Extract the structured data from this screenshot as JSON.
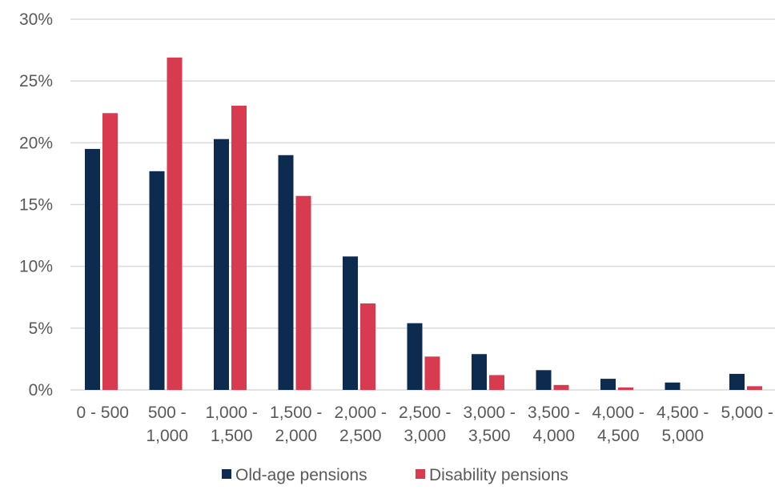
{
  "chart_data": {
    "type": "bar",
    "categories": [
      [
        "0 - 500",
        ""
      ],
      [
        "500 -",
        "1,000"
      ],
      [
        "1,000 -",
        "1,500"
      ],
      [
        "1,500 -",
        "2,000"
      ],
      [
        "2,000 -",
        "2,500"
      ],
      [
        "2,500 -",
        "3,000"
      ],
      [
        "3,000 -",
        "3,500"
      ],
      [
        "3,500 -",
        "4,000"
      ],
      [
        "4,000 -",
        "4,500"
      ],
      [
        "4,500 -",
        "5,000"
      ],
      [
        "5,000 -",
        ""
      ]
    ],
    "series": [
      {
        "name": "Old-age pensions",
        "color": "#0d2a4f",
        "values": [
          19.5,
          17.7,
          20.3,
          19.0,
          10.8,
          5.4,
          2.9,
          1.6,
          0.9,
          0.6,
          1.3
        ]
      },
      {
        "name": "Disability pensions",
        "color": "#d83a50",
        "values": [
          22.4,
          26.9,
          23.0,
          15.7,
          7.0,
          2.7,
          1.2,
          0.4,
          0.2,
          0.0,
          0.3
        ]
      }
    ],
    "yticks": [
      "0%",
      "5%",
      "10%",
      "15%",
      "20%",
      "25%",
      "30%"
    ],
    "ylim": [
      0,
      30
    ],
    "grid": true,
    "legend_position": "bottom"
  }
}
